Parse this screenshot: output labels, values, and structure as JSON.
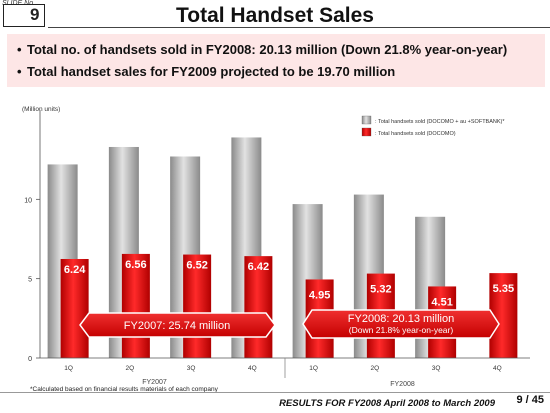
{
  "slide": {
    "label": "SLIDE No.",
    "number": "9"
  },
  "title": "Total Handset Sales",
  "bullets": [
    "Total no. of handsets sold in FY2008: 20.13 million (Down 21.8% year-on-year)",
    "Total handset sales for FY2009 projected to be 19.70 million"
  ],
  "footnote": "*Calculated based on financial results materials of each company",
  "footer": "RESULTS FOR FY2008  April 2008 to March 2009",
  "page": {
    "current": "9",
    "separator": "/",
    "total": "45"
  },
  "chart_data": {
    "type": "bar",
    "unit_label": "(Million units)",
    "ylim": [
      0,
      15
    ],
    "yticks": [
      0,
      5,
      10
    ],
    "categories": [
      "1Q",
      "2Q",
      "3Q",
      "4Q",
      "1Q",
      "2Q",
      "3Q",
      "4Q"
    ],
    "groups": [
      "FY2007",
      "FY2007",
      "FY2007",
      "FY2007",
      "FY2008",
      "FY2008",
      "FY2008",
      "FY2008"
    ],
    "group_labels": [
      "FY2007",
      "FY2008"
    ],
    "series": [
      {
        "name": ": Total handsets sold (DOCOMO + au +SOFTBANK)*",
        "color": "#a8a8a8",
        "values": [
          12.2,
          13.3,
          12.7,
          13.9,
          9.7,
          10.3,
          8.9,
          null
        ]
      },
      {
        "name": ": Total handsets sold (DOCOMO)",
        "color": "#dd0000",
        "values": [
          6.24,
          6.56,
          6.52,
          6.42,
          4.95,
          5.32,
          4.51,
          5.35
        ]
      }
    ],
    "data_labels": [
      "6.24",
      "6.56",
      "6.52",
      "6.42",
      "4.95",
      "5.32",
      "4.51",
      "5.35"
    ],
    "banners": [
      {
        "text": "FY2007: 25.74 million"
      },
      {
        "text": "FY2008: 20.13 million",
        "subtext": "(Down 21.8% year-on-year)"
      }
    ],
    "legend_position": "top-right"
  }
}
